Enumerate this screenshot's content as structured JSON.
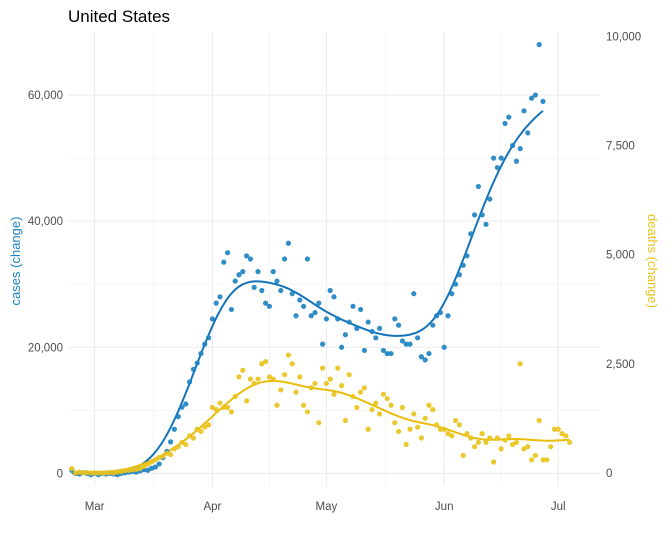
{
  "chart_data": {
    "type": "scatter",
    "title": "United States",
    "xlabel": "",
    "x_ticks": [
      "Mar",
      "Apr",
      "May",
      "Jun",
      "Jul"
    ],
    "x_tick_days": [
      0,
      31,
      61,
      92,
      122
    ],
    "x_lim_days": [
      -7,
      133
    ],
    "y_left": {
      "label": "cases (change)",
      "color": "#1f83c2",
      "lim": [
        -2000,
        70000
      ],
      "ticks": [
        0,
        20000,
        40000,
        60000
      ],
      "tick_labels": [
        "0",
        "20,000",
        "40,000",
        "60,000"
      ]
    },
    "y_right": {
      "label": "deaths (change)",
      "color": "#e8c31c",
      "lim": [
        -300,
        10100
      ],
      "ticks": [
        0,
        2500,
        5000,
        7500,
        10000
      ],
      "tick_labels": [
        "0",
        "2,500",
        "5,000",
        "7,500",
        "10,000"
      ]
    },
    "grid": true,
    "series": [
      {
        "name": "cases (change)",
        "axis": "left",
        "color": "#1f83c2",
        "trend_color": "#1573b8",
        "points": [
          [
            -6,
            500
          ],
          [
            -5,
            0
          ],
          [
            -4,
            -100
          ],
          [
            -3,
            100
          ],
          [
            -2,
            0
          ],
          [
            -1,
            -200
          ],
          [
            0,
            0
          ],
          [
            1,
            -200
          ],
          [
            2,
            0
          ],
          [
            3,
            -100
          ],
          [
            4,
            0
          ],
          [
            5,
            -100
          ],
          [
            6,
            -200
          ],
          [
            7,
            0
          ],
          [
            8,
            100
          ],
          [
            9,
            200
          ],
          [
            10,
            300
          ],
          [
            11,
            200
          ],
          [
            12,
            400
          ],
          [
            13,
            600
          ],
          [
            14,
            500
          ],
          [
            15,
            800
          ],
          [
            16,
            1000
          ],
          [
            17,
            1500
          ],
          [
            18,
            2500
          ],
          [
            19,
            3500
          ],
          [
            20,
            5000
          ],
          [
            21,
            7000
          ],
          [
            22,
            9000
          ],
          [
            23,
            10500
          ],
          [
            24,
            11000
          ],
          [
            25,
            14500
          ],
          [
            26,
            16500
          ],
          [
            27,
            17500
          ],
          [
            28,
            19000
          ],
          [
            29,
            20500
          ],
          [
            30,
            21500
          ],
          [
            31,
            24500
          ],
          [
            32,
            27000
          ],
          [
            33,
            28000
          ],
          [
            34,
            33500
          ],
          [
            35,
            35000
          ],
          [
            36,
            26000
          ],
          [
            37,
            30500
          ],
          [
            38,
            31500
          ],
          [
            39,
            32000
          ],
          [
            40,
            34500
          ],
          [
            41,
            34000
          ],
          [
            42,
            29500
          ],
          [
            43,
            32000
          ],
          [
            44,
            29000
          ],
          [
            45,
            27000
          ],
          [
            46,
            26500
          ],
          [
            47,
            32000
          ],
          [
            48,
            30500
          ],
          [
            49,
            29000
          ],
          [
            50,
            34000
          ],
          [
            51,
            36500
          ],
          [
            52,
            28500
          ],
          [
            53,
            25000
          ],
          [
            54,
            27500
          ],
          [
            55,
            26500
          ],
          [
            56,
            34000
          ],
          [
            57,
            25000
          ],
          [
            58,
            25500
          ],
          [
            59,
            27000
          ],
          [
            60,
            20500
          ],
          [
            61,
            24500
          ],
          [
            62,
            29000
          ],
          [
            63,
            28000
          ],
          [
            64,
            24500
          ],
          [
            65,
            20000
          ],
          [
            66,
            22000
          ],
          [
            67,
            24000
          ],
          [
            68,
            26500
          ],
          [
            69,
            23000
          ],
          [
            70,
            26000
          ],
          [
            71,
            19500
          ],
          [
            72,
            24000
          ],
          [
            73,
            22500
          ],
          [
            74,
            21500
          ],
          [
            75,
            23000
          ],
          [
            76,
            19500
          ],
          [
            77,
            19000
          ],
          [
            78,
            19000
          ],
          [
            79,
            24500
          ],
          [
            80,
            23500
          ],
          [
            81,
            21000
          ],
          [
            82,
            20500
          ],
          [
            83,
            20500
          ],
          [
            84,
            28500
          ],
          [
            85,
            21500
          ],
          [
            86,
            18500
          ],
          [
            87,
            18000
          ],
          [
            88,
            19000
          ],
          [
            89,
            23500
          ],
          [
            90,
            25000
          ],
          [
            91,
            25500
          ],
          [
            92,
            20000
          ],
          [
            93,
            25000
          ],
          [
            94,
            28500
          ],
          [
            95,
            30000
          ],
          [
            96,
            31500
          ],
          [
            97,
            33000
          ],
          [
            98,
            34500
          ],
          [
            99,
            38000
          ],
          [
            100,
            41000
          ],
          [
            101,
            45500
          ],
          [
            102,
            41000
          ],
          [
            103,
            39500
          ],
          [
            104,
            43500
          ],
          [
            105,
            50000
          ],
          [
            106,
            48500
          ],
          [
            107,
            50000
          ],
          [
            108,
            55500
          ],
          [
            109,
            56500
          ],
          [
            110,
            52000
          ],
          [
            111,
            49500
          ],
          [
            112,
            51500
          ],
          [
            113,
            57500
          ],
          [
            114,
            54000
          ],
          [
            115,
            59500
          ],
          [
            116,
            60000
          ],
          [
            117,
            68000
          ],
          [
            118,
            59000
          ]
        ]
      },
      {
        "name": "deaths (change)",
        "axis": "right",
        "color": "#e8c31c",
        "trend_color": "#e8bd0d",
        "points": [
          [
            -6,
            100
          ],
          [
            -5,
            0
          ],
          [
            -4,
            20
          ],
          [
            -3,
            0
          ],
          [
            -2,
            10
          ],
          [
            -1,
            0
          ],
          [
            0,
            0
          ],
          [
            1,
            0
          ],
          [
            2,
            0
          ],
          [
            3,
            0
          ],
          [
            4,
            10
          ],
          [
            5,
            0
          ],
          [
            6,
            20
          ],
          [
            7,
            30
          ],
          [
            8,
            50
          ],
          [
            9,
            60
          ],
          [
            10,
            70
          ],
          [
            11,
            80
          ],
          [
            12,
            100
          ],
          [
            13,
            150
          ],
          [
            14,
            200
          ],
          [
            15,
            250
          ],
          [
            16,
            300
          ],
          [
            17,
            350
          ],
          [
            18,
            380
          ],
          [
            19,
            450
          ],
          [
            20,
            420
          ],
          [
            21,
            550
          ],
          [
            22,
            600
          ],
          [
            23,
            700
          ],
          [
            24,
            650
          ],
          [
            25,
            850
          ],
          [
            26,
            800
          ],
          [
            27,
            1000
          ],
          [
            28,
            950
          ],
          [
            29,
            1050
          ],
          [
            30,
            1100
          ],
          [
            31,
            1500
          ],
          [
            32,
            1450
          ],
          [
            33,
            1600
          ],
          [
            34,
            1500
          ],
          [
            35,
            1500
          ],
          [
            36,
            1400
          ],
          [
            37,
            1750
          ],
          [
            38,
            2200
          ],
          [
            39,
            2350
          ],
          [
            40,
            1650
          ],
          [
            41,
            2150
          ],
          [
            42,
            2050
          ],
          [
            43,
            2150
          ],
          [
            44,
            2500
          ],
          [
            45,
            2550
          ],
          [
            46,
            2200
          ],
          [
            47,
            2150
          ],
          [
            48,
            1550
          ],
          [
            49,
            1900
          ],
          [
            50,
            2250
          ],
          [
            51,
            2700
          ],
          [
            52,
            2500
          ],
          [
            53,
            1850
          ],
          [
            54,
            2200
          ],
          [
            55,
            1550
          ],
          [
            56,
            1400
          ],
          [
            57,
            1950
          ],
          [
            58,
            2050
          ],
          [
            59,
            1150
          ],
          [
            60,
            2400
          ],
          [
            61,
            2050
          ],
          [
            62,
            2150
          ],
          [
            63,
            1800
          ],
          [
            64,
            2400
          ],
          [
            65,
            2000
          ],
          [
            66,
            1200
          ],
          [
            67,
            2250
          ],
          [
            68,
            1750
          ],
          [
            69,
            1500
          ],
          [
            70,
            1850
          ],
          [
            71,
            1950
          ],
          [
            72,
            1000
          ],
          [
            73,
            1450
          ],
          [
            74,
            1600
          ],
          [
            75,
            1350
          ],
          [
            76,
            1800
          ],
          [
            77,
            1700
          ],
          [
            78,
            1550
          ],
          [
            79,
            1150
          ],
          [
            80,
            950
          ],
          [
            81,
            1500
          ],
          [
            82,
            650
          ],
          [
            83,
            1000
          ],
          [
            84,
            1350
          ],
          [
            85,
            1050
          ],
          [
            86,
            800
          ],
          [
            87,
            1250
          ],
          [
            88,
            1550
          ],
          [
            89,
            1450
          ],
          [
            90,
            1100
          ],
          [
            91,
            1000
          ],
          [
            92,
            1000
          ],
          [
            93,
            900
          ],
          [
            94,
            850
          ],
          [
            95,
            1200
          ],
          [
            96,
            1100
          ],
          [
            97,
            400
          ],
          [
            98,
            900
          ],
          [
            99,
            800
          ],
          [
            100,
            600
          ],
          [
            101,
            700
          ],
          [
            102,
            900
          ],
          [
            103,
            700
          ],
          [
            104,
            800
          ],
          [
            105,
            250
          ],
          [
            106,
            800
          ],
          [
            107,
            550
          ],
          [
            108,
            750
          ],
          [
            109,
            850
          ],
          [
            110,
            650
          ],
          [
            111,
            700
          ],
          [
            112,
            2500
          ],
          [
            113,
            550
          ],
          [
            114,
            600
          ],
          [
            115,
            300
          ],
          [
            116,
            400
          ],
          [
            117,
            1200
          ],
          [
            118,
            300
          ],
          [
            119,
            300
          ],
          [
            120,
            600
          ],
          [
            121,
            1000
          ],
          [
            122,
            1000
          ],
          [
            123,
            900
          ],
          [
            124,
            850
          ],
          [
            125,
            700
          ]
        ]
      }
    ]
  }
}
